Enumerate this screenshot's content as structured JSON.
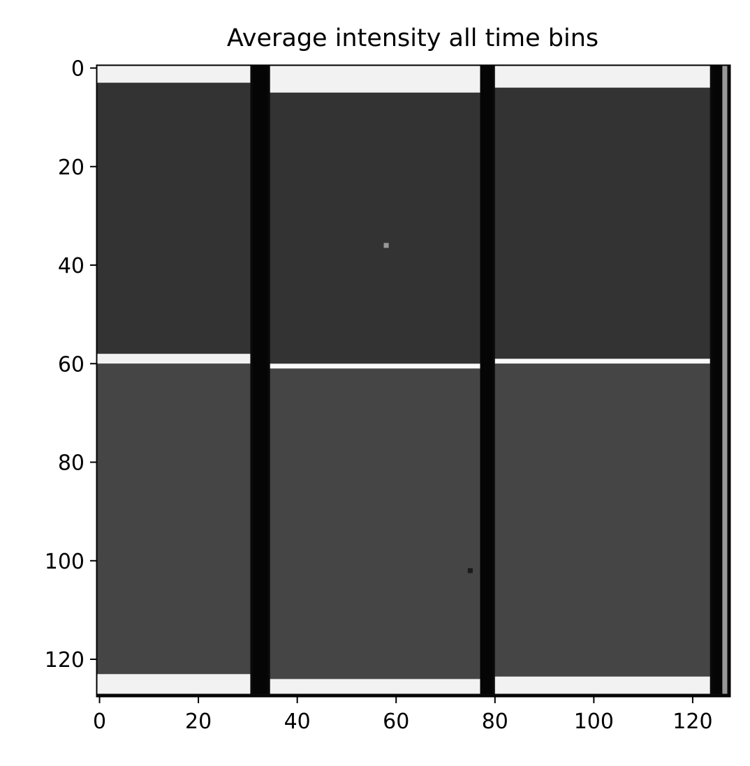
{
  "chart_data": {
    "type": "heatmap",
    "title": "Average intensity all time bins",
    "xlabel": "",
    "ylabel": "",
    "colormap": "grayscale",
    "xlim": [
      -0.5,
      127.5
    ],
    "ylim": [
      127.5,
      -0.5
    ],
    "x_ticks": [
      0,
      20,
      40,
      60,
      80,
      100,
      120
    ],
    "y_ticks": [
      0,
      20,
      40,
      60,
      80,
      100,
      120
    ],
    "grid": false,
    "colors": {
      "upper_panel": "#343434",
      "lower_panel": "#464646",
      "gap_column": "#050505",
      "edge_row": "#f2f2f2",
      "seam_line": "#fafafa"
    },
    "regions": [
      {
        "name": "top edge strip module 1",
        "x": [
          0,
          31
        ],
        "y": [
          0,
          3.5
        ],
        "intensity": 0.95
      },
      {
        "name": "upper panel module 1",
        "x": [
          0,
          31
        ],
        "y": [
          3.5,
          58.5
        ],
        "intensity": 0.2
      },
      {
        "name": "seam module 1",
        "x": [
          0,
          31
        ],
        "y": [
          58.5,
          60.5
        ],
        "intensity": 0.95
      },
      {
        "name": "lower panel module 1",
        "x": [
          0,
          31
        ],
        "y": [
          60.5,
          123.5
        ],
        "intensity": 0.27
      },
      {
        "name": "bottom edge strip module 1",
        "x": [
          0,
          31
        ],
        "y": [
          123.5,
          127.5
        ],
        "intensity": 0.95
      },
      {
        "name": "top edge strip module 2",
        "x": [
          35,
          77.5
        ],
        "y": [
          0,
          5.5
        ],
        "intensity": 0.95
      },
      {
        "name": "upper panel module 2",
        "x": [
          35,
          77.5
        ],
        "y": [
          5.5,
          60.5
        ],
        "intensity": 0.2
      },
      {
        "name": "seam module 2",
        "x": [
          35,
          77.5
        ],
        "y": [
          60.5,
          61.5
        ],
        "intensity": 0.98
      },
      {
        "name": "lower panel module 2",
        "x": [
          35,
          77.5
        ],
        "y": [
          61.5,
          124.5
        ],
        "intensity": 0.27
      },
      {
        "name": "bottom edge strip module 2",
        "x": [
          35,
          77.5
        ],
        "y": [
          124.5,
          127.5
        ],
        "intensity": 0.95
      },
      {
        "name": "top edge strip module 3",
        "x": [
          80.5,
          124
        ],
        "y": [
          0,
          4.5
        ],
        "intensity": 0.95
      },
      {
        "name": "upper panel module 3",
        "x": [
          80.5,
          124
        ],
        "y": [
          4.5,
          59.5
        ],
        "intensity": 0.2
      },
      {
        "name": "seam module 3",
        "x": [
          80.5,
          124
        ],
        "y": [
          59.5,
          60.5
        ],
        "intensity": 0.98
      },
      {
        "name": "lower panel module 3",
        "x": [
          80.5,
          124
        ],
        "y": [
          60.5,
          124
        ],
        "intensity": 0.27
      },
      {
        "name": "bottom edge strip module 3",
        "x": [
          80.5,
          124
        ],
        "y": [
          124,
          127.5
        ],
        "intensity": 0.95
      },
      {
        "name": "gap column 1",
        "x": [
          31.5,
          34.5
        ],
        "y": [
          -0.5,
          127.5
        ],
        "intensity": 0.02
      },
      {
        "name": "gap column 2",
        "x": [
          77.5,
          80
        ],
        "y": [
          -0.5,
          127.5
        ],
        "intensity": 0.02
      },
      {
        "name": "gap column 3",
        "x": [
          124.5,
          126.5
        ],
        "y": [
          -0.5,
          127.5
        ],
        "intensity": 0.02
      },
      {
        "name": "right edge column",
        "x": [
          126.5,
          127.5
        ],
        "y": [
          -0.5,
          127.5
        ],
        "intensity": 0.6
      }
    ],
    "hot_pixels": [
      {
        "x": 58,
        "y": 36,
        "intensity": 0.6
      },
      {
        "x": 75,
        "y": 102,
        "intensity": 0.1
      }
    ]
  }
}
